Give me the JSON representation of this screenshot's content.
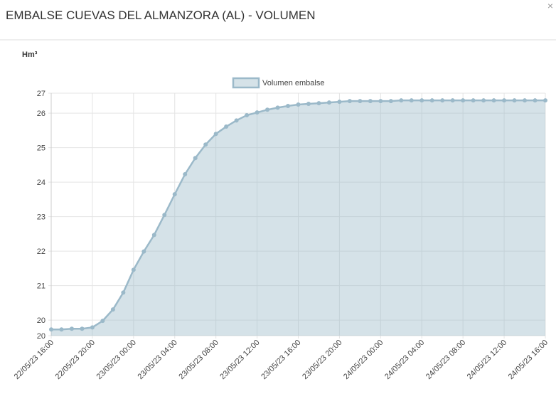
{
  "dialog": {
    "close": "×"
  },
  "chart_data": {
    "type": "area",
    "title": "EMBALSE CUEVAS DEL ALMANZORA (AL) - VOLUMEN",
    "y_label": "Hm³",
    "categories": [
      "22/05/23 16:00",
      null,
      null,
      null,
      "22/05/23 20:00",
      null,
      null,
      null,
      "23/05/23 00:00",
      null,
      null,
      null,
      "23/05/23 04:00",
      null,
      null,
      null,
      "23/05/23 08:00",
      null,
      null,
      null,
      "23/05/23 12:00",
      null,
      null,
      null,
      "23/05/23 16:00",
      null,
      null,
      null,
      "23/05/23 20:00",
      null,
      null,
      null,
      "24/05/23 00:00",
      null,
      null,
      null,
      "24/05/23 04:00",
      null,
      null,
      null,
      "24/05/23 08:00",
      null,
      null,
      null,
      "24/05/23 12:00",
      null,
      null,
      null,
      "24/05/23 16:00"
    ],
    "series": [
      {
        "name": "Volumen embalse",
        "color": "#9bb9c9",
        "values": [
          19.73,
          19.73,
          19.75,
          19.75,
          19.79,
          19.98,
          20.31,
          20.8,
          21.46,
          21.99,
          22.47,
          23.05,
          23.65,
          24.23,
          24.7,
          25.09,
          25.4,
          25.61,
          25.79,
          25.94,
          26.02,
          26.1,
          26.16,
          26.21,
          26.25,
          26.27,
          26.29,
          26.31,
          26.33,
          26.35,
          26.35,
          26.35,
          26.35,
          26.35,
          26.37,
          26.37,
          26.37,
          26.37,
          26.37,
          26.37,
          26.37,
          26.37,
          26.37,
          26.37,
          26.37,
          26.37,
          26.37,
          26.37,
          26.37
        ]
      }
    ],
    "ylim": [
      19.55,
      26.58
    ],
    "yticks": [
      {
        "value": 19.55,
        "label": "20"
      },
      20,
      21,
      22,
      23,
      24,
      25,
      26,
      {
        "value": 26.58,
        "label": "27"
      }
    ],
    "grid": true
  }
}
